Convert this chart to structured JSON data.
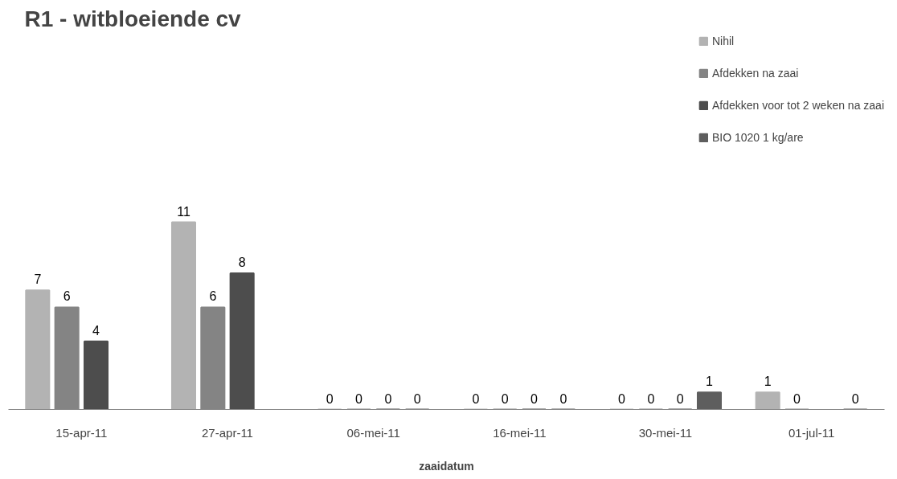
{
  "chart_data": {
    "type": "bar",
    "title": "R1 - witbloeiende cv",
    "xlabel": "zaaidatum",
    "categories": [
      "15-apr-11",
      "27-apr-11",
      "06-mei-11",
      "16-mei-11",
      "30-mei-11",
      "01-jul-11"
    ],
    "series": [
      {
        "name": "Nihil",
        "color": "#b3b3b3",
        "values": [
          7,
          11,
          0,
          0,
          0,
          1
        ]
      },
      {
        "name": "Afdekken na zaai",
        "color": "#848484",
        "values": [
          6,
          6,
          0,
          0,
          0,
          0
        ]
      },
      {
        "name": "Afdekken voor tot 2 weken na zaai",
        "color": "#4d4d4d",
        "values": [
          4,
          8,
          0,
          0,
          0,
          null
        ]
      },
      {
        "name": "BIO 1020 1 kg/are",
        "color": "#5e5e5e",
        "values": [
          null,
          null,
          0,
          0,
          1,
          0
        ]
      }
    ],
    "data_labels": true,
    "legend": "top right",
    "grid": false
  }
}
